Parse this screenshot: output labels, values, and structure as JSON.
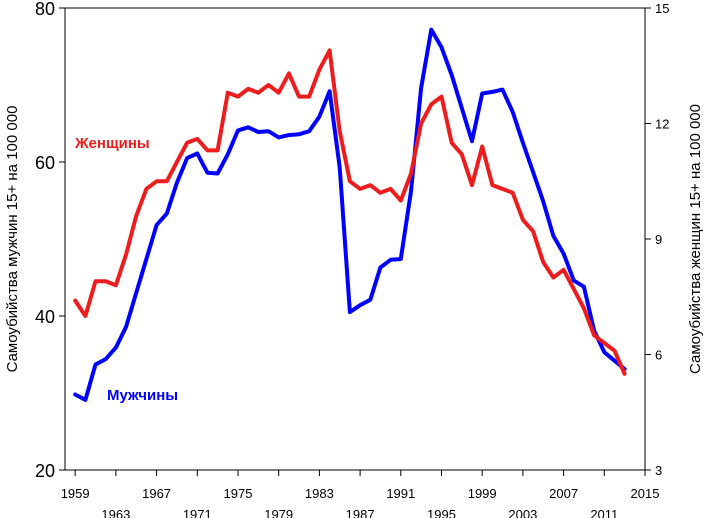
{
  "chart_data": {
    "type": "line",
    "title": "",
    "xlabel": "",
    "ylabel_left": "Самоубийства мужчин 15+ на 100 000",
    "ylabel_right": "Самоубийства женщин 15+ на 100 000",
    "xlim": [
      1958,
      2015
    ],
    "ylim_left": [
      20,
      80
    ],
    "ylim_right": [
      3,
      15
    ],
    "x_ticks": [
      "1959",
      "1963",
      "1967",
      "1971",
      "1975",
      "1979",
      "1983",
      "1987",
      "1991",
      "1995",
      "1999",
      "2003",
      "2007",
      "2011",
      "2015"
    ],
    "y_ticks_left": [
      "20",
      "40",
      "60",
      "80"
    ],
    "y_ticks_right": [
      "3",
      "6",
      "9",
      "12",
      "15"
    ],
    "series": [
      {
        "name": "Мужчины",
        "axis": "left",
        "color": "#0000ff",
        "x": [
          1959,
          1960,
          1961,
          1962,
          1963,
          1964,
          1965,
          1966,
          1967,
          1968,
          1969,
          1970,
          1971,
          1972,
          1973,
          1974,
          1975,
          1976,
          1977,
          1978,
          1979,
          1980,
          1981,
          1982,
          1983,
          1984,
          1985,
          1986,
          1987,
          1988,
          1989,
          1990,
          1991,
          1992,
          1993,
          1994,
          1995,
          1996,
          1997,
          1998,
          1999,
          2000,
          2001,
          2002,
          2003,
          2004,
          2005,
          2006,
          2007,
          2008,
          2009,
          2010,
          2011,
          2012,
          2013
        ],
        "values": [
          29.8,
          29.1,
          33.7,
          34.4,
          35.9,
          38.6,
          43.0,
          47.4,
          51.8,
          53.3,
          57.3,
          60.5,
          61.1,
          58.6,
          58.5,
          61.0,
          64.1,
          64.5,
          63.9,
          64.0,
          63.2,
          63.5,
          63.6,
          64.0,
          65.9,
          69.2,
          59.3,
          40.5,
          41.4,
          42.1,
          46.3,
          47.3,
          47.4,
          56.2,
          69.6,
          77.2,
          74.9,
          71.3,
          67.0,
          62.7,
          68.9,
          69.1,
          69.4,
          66.5,
          62.5,
          58.7,
          54.9,
          50.4,
          48.1,
          44.6,
          43.8,
          38.1,
          35.3,
          34.2,
          33.1
        ]
      },
      {
        "name": "Женщины",
        "axis": "right",
        "color": "#ee1c1c",
        "x": [
          1959,
          1960,
          1961,
          1962,
          1963,
          1964,
          1965,
          1966,
          1967,
          1968,
          1969,
          1970,
          1971,
          1972,
          1973,
          1974,
          1975,
          1976,
          1977,
          1978,
          1979,
          1980,
          1981,
          1982,
          1983,
          1984,
          1985,
          1986,
          1987,
          1988,
          1989,
          1990,
          1991,
          1992,
          1993,
          1994,
          1995,
          1996,
          1997,
          1998,
          1999,
          2000,
          2001,
          2002,
          2003,
          2004,
          2005,
          2006,
          2007,
          2008,
          2009,
          2010,
          2011,
          2012,
          2013
        ],
        "values": [
          7.4,
          7.0,
          7.9,
          7.9,
          7.8,
          8.6,
          9.6,
          10.3,
          10.5,
          10.5,
          11.0,
          11.5,
          11.6,
          11.3,
          11.3,
          12.8,
          12.7,
          12.9,
          12.8,
          13.0,
          12.8,
          13.3,
          12.7,
          12.7,
          13.4,
          13.9,
          11.8,
          10.5,
          10.3,
          10.4,
          10.2,
          10.3,
          10.0,
          10.7,
          12.0,
          12.5,
          12.7,
          11.5,
          11.2,
          10.4,
          11.4,
          10.4,
          10.3,
          10.2,
          9.5,
          9.2,
          8.4,
          8.0,
          8.2,
          7.7,
          7.2,
          6.5,
          6.3,
          6.1,
          5.5
        ]
      }
    ],
    "labels": {
      "women": "Женщины",
      "men": "Мужчины"
    },
    "grid": false
  }
}
